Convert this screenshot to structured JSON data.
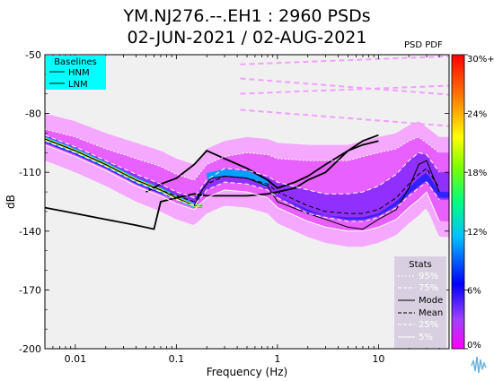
{
  "title_line1": "YM.NJ276.--.EH1 : 2960 PSDs",
  "title_line2": "02-JUN-2021 / 02-AUG-2021",
  "colorbar_label": "PSD PDF",
  "colorbar_ticks": [
    "0%",
    "6%",
    "12%",
    "18%",
    "24%",
    "30%+"
  ],
  "colorbar_tick_values": [
    0,
    6,
    12,
    18,
    24,
    30
  ],
  "baselines_legend": {
    "title": "Baselines",
    "items": [
      "HNM",
      "LNM"
    ]
  },
  "stats_legend": {
    "title": "Stats",
    "items": [
      "95%",
      "75%",
      "Mode",
      "Mean",
      "25%",
      "5%"
    ]
  },
  "colors": {
    "plot_bg": "#f0f0f0",
    "baselines_box": "#00ffff",
    "stats_box": "#d8d0e0",
    "mode_line": "#000000",
    "percentile_line": "#ffffff"
  },
  "chart_data": {
    "type": "heatmap",
    "xlabel": "Frequency (Hz)",
    "ylabel": "dB",
    "x_scale": "log",
    "xlim": [
      0.005,
      50
    ],
    "ylim": [
      -200,
      -50
    ],
    "x_ticks": [
      0.01,
      0.1,
      1,
      10
    ],
    "x_tick_labels": [
      "0.01",
      "0.1",
      "1",
      "10"
    ],
    "y_ticks": [
      -50,
      -80,
      -110,
      -140,
      -170,
      -200
    ],
    "y_tick_labels": [
      "-50",
      "-80",
      "-110",
      "-140",
      "-170",
      "-200"
    ],
    "colorbar_range": [
      0,
      30
    ],
    "series": [
      {
        "name": "HNM",
        "x": [
          0.05,
          0.07,
          0.1,
          0.15,
          0.2,
          0.3,
          0.5,
          0.8,
          1.0,
          1.5,
          2,
          3,
          5,
          7,
          10
        ],
        "y": [
          -120,
          -116,
          -113,
          -106,
          -99,
          -103,
          -108,
          -114,
          -118,
          -115,
          -112,
          -106,
          -99,
          -94,
          -91
        ]
      },
      {
        "name": "LNM",
        "x": [
          0.005,
          0.01,
          0.02,
          0.04,
          0.06,
          0.07,
          0.1,
          0.15,
          0.2,
          0.3,
          0.5,
          0.8,
          1,
          1.5,
          2,
          3,
          5,
          7,
          10
        ],
        "y": [
          -128,
          -131,
          -134,
          -137,
          -139,
          -125,
          -123,
          -121,
          -122,
          -122,
          -122,
          -121,
          -120,
          -118,
          -114,
          -110,
          -99,
          -96,
          -94
        ]
      },
      {
        "name": "Mode",
        "x": [
          0.005,
          0.01,
          0.02,
          0.04,
          0.07,
          0.1,
          0.15,
          0.18,
          0.22,
          0.3,
          0.5,
          0.8,
          1,
          2,
          3,
          5,
          7,
          10,
          15,
          20,
          25,
          30,
          40
        ],
        "y": [
          -93,
          -99,
          -106,
          -114,
          -119,
          -123,
          -127,
          -119,
          -113,
          -112,
          -113,
          -117,
          -125,
          -131,
          -134,
          -138,
          -139,
          -134,
          -129,
          -118,
          -106,
          -104,
          -120
        ]
      },
      {
        "name": "Mean",
        "x": [
          0.005,
          0.01,
          0.02,
          0.04,
          0.07,
          0.1,
          0.15,
          0.2,
          0.3,
          0.5,
          0.8,
          1,
          2,
          3,
          5,
          7,
          10,
          15,
          20,
          25,
          30,
          40
        ],
        "y": [
          -93,
          -99,
          -106,
          -114,
          -119,
          -122,
          -125,
          -116,
          -112,
          -113,
          -116,
          -120,
          -127,
          -130,
          -131,
          -131,
          -129,
          -123,
          -116,
          -111,
          -108,
          -118
        ]
      },
      {
        "name": "95%",
        "x": [
          0.005,
          0.01,
          0.02,
          0.04,
          0.07,
          0.1,
          0.15,
          0.2,
          0.3,
          0.5,
          0.8,
          1,
          2,
          3,
          5,
          7,
          10,
          15,
          20,
          25,
          30,
          40
        ],
        "y": [
          -88,
          -92,
          -98,
          -103,
          -107,
          -111,
          -114,
          -106,
          -102,
          -100,
          -101,
          -103,
          -104,
          -104,
          -104,
          -102,
          -100,
          -98,
          -94,
          -92,
          -95,
          -100
        ]
      },
      {
        "name": "75%",
        "x": [
          0.005,
          0.01,
          0.02,
          0.04,
          0.07,
          0.1,
          0.15,
          0.2,
          0.3,
          0.5,
          0.8,
          1,
          2,
          3,
          5,
          7,
          10,
          15,
          20,
          25,
          30,
          40
        ],
        "y": [
          -91,
          -97,
          -104,
          -111,
          -116,
          -120,
          -123,
          -114,
          -108,
          -109,
          -112,
          -115,
          -119,
          -121,
          -121,
          -120,
          -117,
          -111,
          -104,
          -100,
          -101,
          -110
        ]
      },
      {
        "name": "25%",
        "x": [
          0.005,
          0.01,
          0.02,
          0.04,
          0.07,
          0.1,
          0.15,
          0.2,
          0.3,
          0.5,
          0.8,
          1,
          2,
          3,
          5,
          7,
          10,
          15,
          20,
          25,
          30,
          40
        ],
        "y": [
          -94,
          -100,
          -107,
          -115,
          -120,
          -124,
          -127,
          -119,
          -115,
          -116,
          -119,
          -123,
          -131,
          -133,
          -135,
          -135,
          -133,
          -128,
          -122,
          -118,
          -115,
          -124
        ]
      },
      {
        "name": "5%",
        "x": [
          0.005,
          0.01,
          0.02,
          0.04,
          0.07,
          0.1,
          0.15,
          0.2,
          0.3,
          0.5,
          0.8,
          1,
          2,
          3,
          5,
          7,
          10,
          15,
          20,
          25,
          30,
          40
        ],
        "y": [
          -96,
          -102,
          -109,
          -117,
          -122,
          -126,
          -129,
          -123,
          -119,
          -120,
          -123,
          -128,
          -135,
          -138,
          -140,
          -140,
          -138,
          -134,
          -128,
          -124,
          -120,
          -135
        ]
      }
    ]
  }
}
